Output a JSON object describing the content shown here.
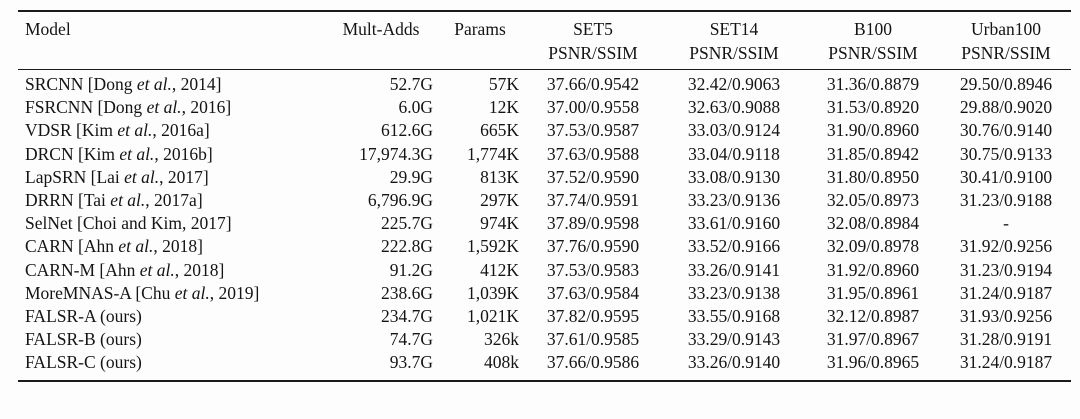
{
  "page": {
    "background_color": "#fdfdfd",
    "text_color": "#141414"
  },
  "table": {
    "columns": [
      {
        "key": "model",
        "label": "Model"
      },
      {
        "key": "mult_adds",
        "label": "Mult-Adds"
      },
      {
        "key": "params",
        "label": "Params"
      },
      {
        "key": "set5",
        "label": "SET5",
        "sub": "PSNR/SSIM"
      },
      {
        "key": "set14",
        "label": "SET14",
        "sub": "PSNR/SSIM"
      },
      {
        "key": "b100",
        "label": "B100",
        "sub": "PSNR/SSIM"
      },
      {
        "key": "urban100",
        "label": "Urban100",
        "sub": "PSNR/SSIM"
      }
    ],
    "rows": [
      {
        "model": "SRCNN [Dong et al., 2014]",
        "mult_adds": "52.7G",
        "params": "57K",
        "set5": "37.66/0.9542",
        "set14": "32.42/0.9063",
        "b100": "31.36/0.8879",
        "urban100": "29.50/0.8946"
      },
      {
        "model": "FSRCNN [Dong et al., 2016]",
        "mult_adds": "6.0G",
        "params": "12K",
        "set5": "37.00/0.9558",
        "set14": "32.63/0.9088",
        "b100": "31.53/0.8920",
        "urban100": "29.88/0.9020"
      },
      {
        "model": "VDSR [Kim et al., 2016a]",
        "mult_adds": "612.6G",
        "params": "665K",
        "set5": "37.53/0.9587",
        "set14": "33.03/0.9124",
        "b100": "31.90/0.8960",
        "urban100": "30.76/0.9140"
      },
      {
        "model": "DRCN [Kim et al., 2016b]",
        "mult_adds": "17,974.3G",
        "params": "1,774K",
        "set5": "37.63/0.9588",
        "set14": "33.04/0.9118",
        "b100": "31.85/0.8942",
        "urban100": "30.75/0.9133"
      },
      {
        "model": "LapSRN [Lai et al., 2017]",
        "mult_adds": "29.9G",
        "params": "813K",
        "set5": "37.52/0.9590",
        "set14": "33.08/0.9130",
        "b100": "31.80/0.8950",
        "urban100": "30.41/0.9100"
      },
      {
        "model": "DRRN [Tai et al., 2017a]",
        "mult_adds": "6,796.9G",
        "params": "297K",
        "set5": "37.74/0.9591",
        "set14": "33.23/0.9136",
        "b100": "32.05/0.8973",
        "urban100": "31.23/0.9188"
      },
      {
        "model": "SelNet [Choi and Kim, 2017]",
        "mult_adds": "225.7G",
        "params": "974K",
        "set5": "37.89/0.9598",
        "set14": "33.61/0.9160",
        "b100": "32.08/0.8984",
        "urban100": "-"
      },
      {
        "model": "CARN [Ahn et al., 2018]",
        "mult_adds": "222.8G",
        "params": "1,592K",
        "set5": "37.76/0.9590",
        "set14": "33.52/0.9166",
        "b100": "32.09/0.8978",
        "urban100": "31.92/0.9256"
      },
      {
        "model": "CARN-M [Ahn et al., 2018]",
        "mult_adds": "91.2G",
        "params": "412K",
        "set5": "37.53/0.9583",
        "set14": "33.26/0.9141",
        "b100": "31.92/0.8960",
        "urban100": "31.23/0.9194"
      },
      {
        "model": "MoreMNAS-A [Chu et al., 2019]",
        "mult_adds": "238.6G",
        "params": "1,039K",
        "set5": "37.63/0.9584",
        "set14": "33.23/0.9138",
        "b100": "31.95/0.8961",
        "urban100": "31.24/0.9187"
      },
      {
        "model": "FALSR-A (ours)",
        "mult_adds": "234.7G",
        "params": "1,021K",
        "set5": "37.82/0.9595",
        "set14": "33.55/0.9168",
        "b100": "32.12/0.8987",
        "urban100": "31.93/0.9256"
      },
      {
        "model": "FALSR-B (ours)",
        "mult_adds": "74.7G",
        "params": "326k",
        "set5": "37.61/0.9585",
        "set14": "33.29/0.9143",
        "b100": "31.97/0.8967",
        "urban100": "31.28/0.9191"
      },
      {
        "model": "FALSR-C (ours)",
        "mult_adds": "93.7G",
        "params": "408k",
        "set5": "37.66/0.9586",
        "set14": "33.26/0.9140",
        "b100": "31.96/0.8965",
        "urban100": "31.24/0.9187"
      }
    ]
  }
}
